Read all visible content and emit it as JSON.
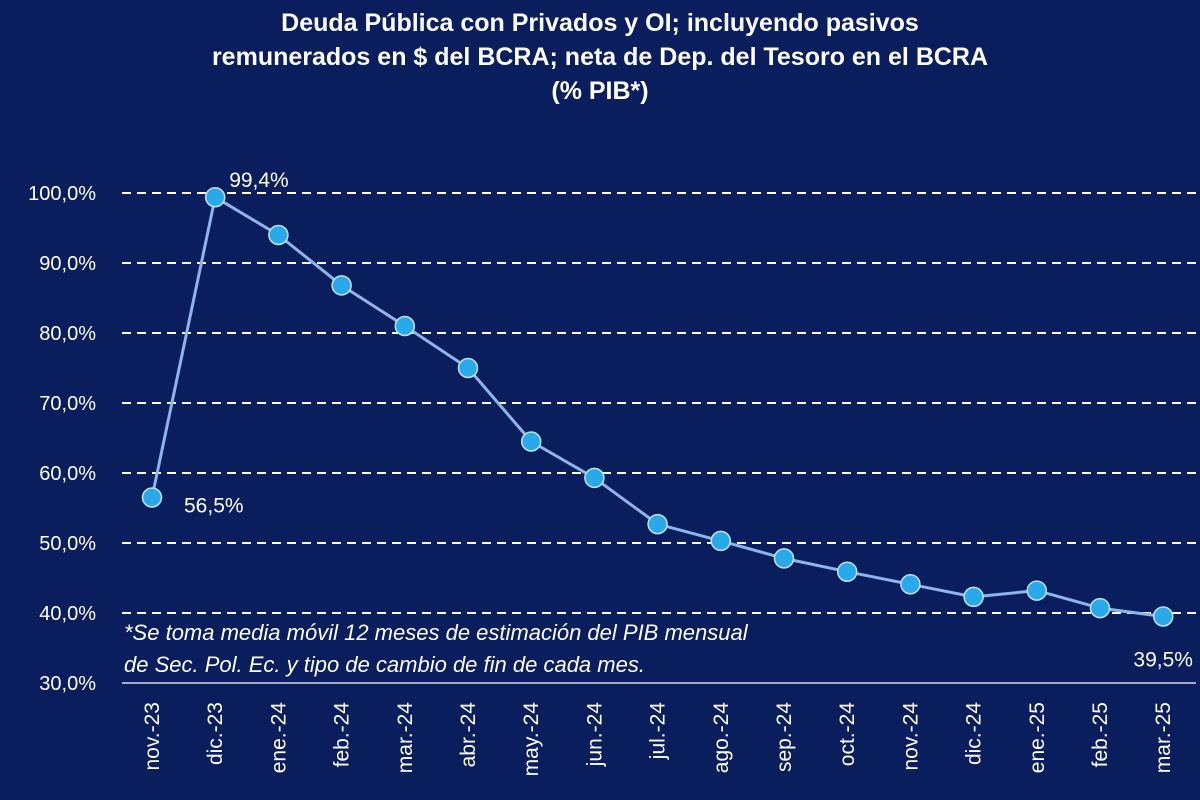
{
  "chart_data": {
    "type": "line",
    "title_lines": [
      "Deuda Pública con Privados y OI; incluyendo pasivos",
      "remunerados en $ del BCRA; neta de Dep. del Tesoro en el BCRA",
      "(% PIB*)"
    ],
    "categories": [
      "nov.-23",
      "dic.-23",
      "ene.-24",
      "feb.-24",
      "mar.-24",
      "abr.-24",
      "may.-24",
      "jun.-24",
      "jul.-24",
      "ago.-24",
      "sep.-24",
      "oct.-24",
      "nov.-24",
      "dic.-24",
      "ene.-25",
      "feb.-25",
      "mar.-25"
    ],
    "series": [
      {
        "name": "Deuda Pública (% PIB)",
        "values": [
          56.5,
          99.4,
          94.0,
          86.8,
          81.0,
          75.0,
          64.5,
          59.3,
          52.7,
          50.3,
          47.8,
          45.9,
          44.1,
          42.3,
          43.2,
          40.7,
          39.5
        ]
      }
    ],
    "data_labels": [
      {
        "index": 0,
        "text": "56,5%"
      },
      {
        "index": 1,
        "text": "99,4%"
      },
      {
        "index": 16,
        "text": "39,5%"
      }
    ],
    "yticks": [
      30,
      40,
      50,
      60,
      70,
      80,
      90,
      100
    ],
    "ytick_labels": [
      "30,0%",
      "40,0%",
      "50,0%",
      "60,0%",
      "70,0%",
      "80,0%",
      "90,0%",
      "100,0%"
    ],
    "ylim": [
      30,
      100
    ],
    "xlabel": "",
    "ylabel": "",
    "grid": "horizontal-dashed",
    "footnote_lines": [
      "*Se toma media móvil 12 meses de estimación del PIB mensual",
      "de Sec. Pol. Ec. y tipo de cambio de fin de cada mes."
    ]
  },
  "colors": {
    "background": "#0a1e5e",
    "line": "#8fb4ea",
    "marker": "#29a9ea",
    "text": "#ffffff",
    "grid": "#ffffff"
  }
}
